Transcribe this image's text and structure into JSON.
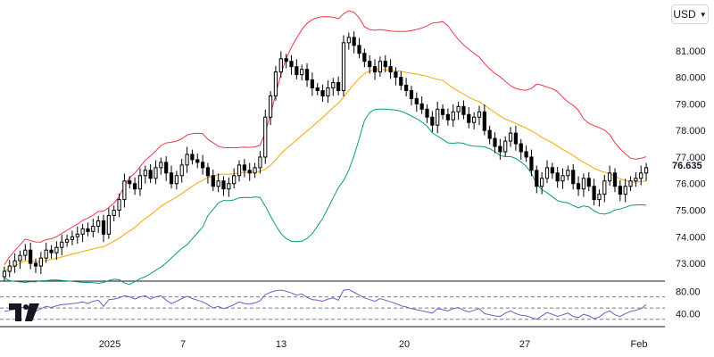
{
  "currency_selector": {
    "label": "USD"
  },
  "last_price": "76.635",
  "colors": {
    "upper_band": "#f23645",
    "basis": "#f7a600",
    "lower_band": "#089981",
    "rsi": "#7e57c2",
    "candle": "#000000",
    "grid_dash": "#787b86"
  },
  "logo": {
    "icon": "tradingview-logo-icon"
  },
  "chart_data": {
    "type": "candlestick",
    "price_axis": {
      "ticks": [
        "81.000",
        "80.000",
        "79.000",
        "78.000",
        "77.000",
        "76.000",
        "75.000",
        "74.000",
        "73.000"
      ],
      "range": [
        72.5,
        81.9
      ]
    },
    "rsi_axis": {
      "ticks": [
        "80.00",
        "40.00"
      ],
      "levels": [
        70,
        50,
        30
      ]
    },
    "time_axis": {
      "ticks": [
        "2025",
        "7",
        "13",
        "20",
        "27",
        "Feb"
      ]
    },
    "closes": [
      72.7,
      72.9,
      73.1,
      73.3,
      73.5,
      73.0,
      72.9,
      73.2,
      73.5,
      73.4,
      73.6,
      73.8,
      73.9,
      74.0,
      74.1,
      74.3,
      74.2,
      74.4,
      74.6,
      74.1,
      74.8,
      75.0,
      75.4,
      76.1,
      76.0,
      75.8,
      76.3,
      76.5,
      76.2,
      76.6,
      76.8,
      76.4,
      76.0,
      76.3,
      76.7,
      77.1,
      76.9,
      76.8,
      76.6,
      76.3,
      75.9,
      76.1,
      75.8,
      76.0,
      76.3,
      76.7,
      76.5,
      76.4,
      76.6,
      77.0,
      78.5,
      79.3,
      80.2,
      80.7,
      80.6,
      80.4,
      80.1,
      80.3,
      79.9,
      79.6,
      79.5,
      79.3,
      79.6,
      79.8,
      79.5,
      81.3,
      81.5,
      81.2,
      80.9,
      80.6,
      80.4,
      80.2,
      80.6,
      80.4,
      80.2,
      80.0,
      79.7,
      79.5,
      79.2,
      79.0,
      78.8,
      78.5,
      78.2,
      78.8,
      78.6,
      78.4,
      78.7,
      78.9,
      78.6,
      78.3,
      78.5,
      78.7,
      78.0,
      77.7,
      77.4,
      77.2,
      77.6,
      77.9,
      77.5,
      77.2,
      77.0,
      76.5,
      75.9,
      76.2,
      76.6,
      76.4,
      76.1,
      76.3,
      76.5,
      76.0,
      75.8,
      76.2,
      75.9,
      75.4,
      75.6,
      76.1,
      76.4,
      75.9,
      75.6,
      75.9,
      76.1,
      76.2,
      76.4,
      76.6
    ],
    "rsi": [
      44,
      46,
      48,
      50,
      52,
      46,
      44,
      49,
      53,
      51,
      54,
      56,
      57,
      58,
      59,
      61,
      58,
      62,
      64,
      53,
      65,
      66,
      68,
      72,
      70,
      66,
      70,
      72,
      66,
      70,
      72,
      64,
      58,
      62,
      67,
      71,
      67,
      64,
      61,
      56,
      50,
      53,
      49,
      52,
      56,
      61,
      58,
      57,
      59,
      63,
      74,
      78,
      81,
      82,
      80,
      77,
      73,
      75,
      69,
      65,
      64,
      62,
      66,
      68,
      64,
      82,
      83,
      78,
      73,
      68,
      65,
      62,
      67,
      64,
      61,
      58,
      54,
      52,
      49,
      47,
      45,
      43,
      41,
      49,
      47,
      45,
      49,
      51,
      46,
      43,
      46,
      49,
      40,
      38,
      36,
      35,
      41,
      45,
      40,
      37,
      36,
      33,
      30,
      36,
      42,
      39,
      35,
      38,
      41,
      35,
      33,
      39,
      36,
      31,
      34,
      41,
      45,
      38,
      35,
      40,
      44,
      46,
      49,
      56
    ]
  }
}
